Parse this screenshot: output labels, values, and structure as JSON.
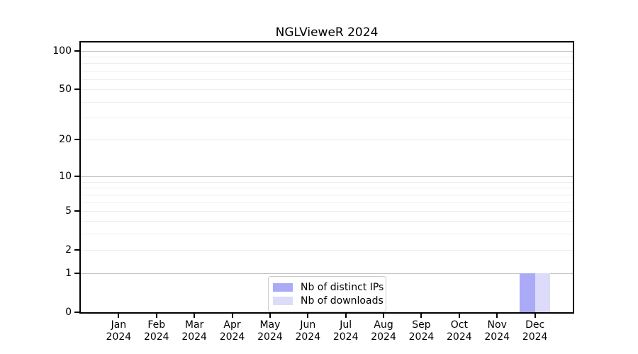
{
  "title": "NGLVieweR 2024",
  "colors": {
    "distinct_ips_bar": "#aaaaf7",
    "downloads_bar": "#dcdbf9",
    "grid_major": "#c2c2c2",
    "grid_minor": "#ededed",
    "axis_spine": "#000000",
    "legend_border": "#cccccc",
    "background": "#ffffff"
  },
  "legend": {
    "items": [
      {
        "label": "Nb of distinct IPs",
        "color": "#aaaaf7"
      },
      {
        "label": "Nb of downloads",
        "color": "#dcdbf9"
      }
    ]
  },
  "chart_data": {
    "type": "bar",
    "title": "NGLVieweR 2024",
    "categories": [
      "Jan",
      "Feb",
      "Mar",
      "Apr",
      "May",
      "Jun",
      "Jul",
      "Aug",
      "Sep",
      "Oct",
      "Nov",
      "Dec"
    ],
    "category_year": "2024",
    "series": [
      {
        "name": "Nb of distinct IPs",
        "color": "#aaaaf7",
        "values": [
          0,
          0,
          0,
          0,
          0,
          0,
          0,
          0,
          0,
          0,
          0,
          1
        ]
      },
      {
        "name": "Nb of downloads",
        "color": "#dcdbf9",
        "values": [
          0,
          0,
          0,
          0,
          0,
          0,
          0,
          0,
          0,
          0,
          0,
          1
        ]
      }
    ],
    "xlabel": "",
    "ylabel": "",
    "y_scale": "log1p",
    "ylim": [
      0,
      116
    ],
    "y_tick_values": [
      0,
      1,
      2,
      5,
      10,
      20,
      50,
      100
    ],
    "y_major_gridlines": [
      1,
      10,
      100
    ],
    "y_minor_gridlines": [
      2,
      3,
      4,
      5,
      6,
      7,
      8,
      9,
      20,
      30,
      40,
      50,
      60,
      70,
      80,
      90
    ],
    "grid": true,
    "legend_position": "lower center"
  }
}
